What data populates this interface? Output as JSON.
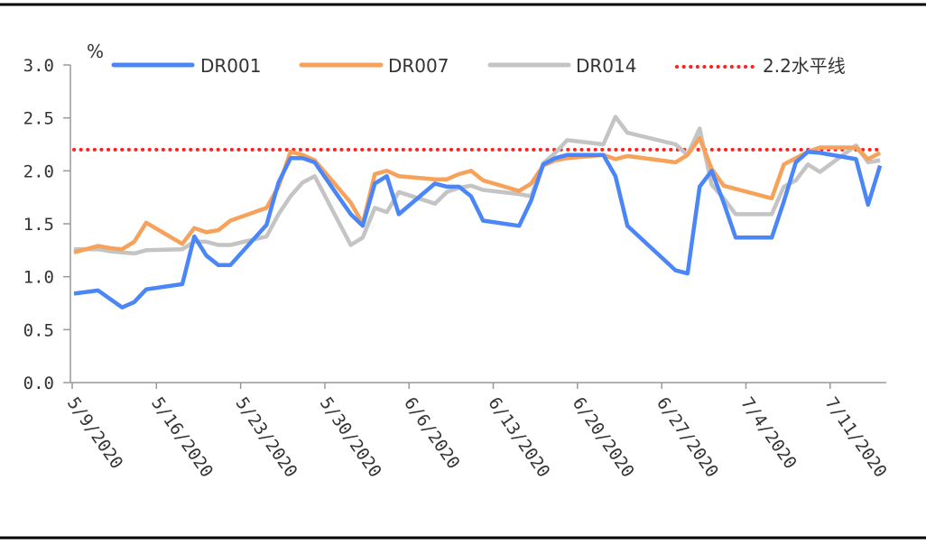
{
  "chart_data": {
    "type": "line",
    "title": "",
    "xlabel": "",
    "ylabel": "%",
    "ylim": [
      0,
      3.0
    ],
    "yticks": [
      "0.0",
      "0.5",
      "1.0",
      "1.5",
      "2.0",
      "2.5",
      "3.0"
    ],
    "xticks": [
      "5/9/2020",
      "5/16/2020",
      "5/23/2020",
      "5/30/2020",
      "6/6/2020",
      "6/13/2020",
      "6/20/2020",
      "6/27/2020",
      "7/4/2020",
      "7/11/2020"
    ],
    "legend_position": "top",
    "grid": false,
    "x": [
      "2020-05-09",
      "2020-05-11",
      "2020-05-12",
      "2020-05-13",
      "2020-05-14",
      "2020-05-15",
      "2020-05-18",
      "2020-05-19",
      "2020-05-20",
      "2020-05-21",
      "2020-05-22",
      "2020-05-25",
      "2020-05-26",
      "2020-05-27",
      "2020-05-28",
      "2020-05-29",
      "2020-06-01",
      "2020-06-02",
      "2020-06-03",
      "2020-06-04",
      "2020-06-05",
      "2020-06-08",
      "2020-06-09",
      "2020-06-10",
      "2020-06-11",
      "2020-06-12",
      "2020-06-15",
      "2020-06-16",
      "2020-06-17",
      "2020-06-18",
      "2020-06-19",
      "2020-06-22",
      "2020-06-23",
      "2020-06-24",
      "2020-06-28",
      "2020-06-29",
      "2020-06-30",
      "2020-07-01",
      "2020-07-02",
      "2020-07-03",
      "2020-07-06",
      "2020-07-07",
      "2020-07-08",
      "2020-07-09",
      "2020-07-10",
      "2020-07-13",
      "2020-07-14",
      "2020-07-15"
    ],
    "series": [
      {
        "name": "DR001",
        "color": "#4a86f7",
        "values": [
          0.84,
          0.87,
          0.79,
          0.71,
          0.76,
          0.88,
          0.93,
          1.38,
          1.2,
          1.11,
          1.11,
          1.49,
          1.89,
          2.12,
          2.12,
          2.08,
          1.59,
          1.48,
          1.88,
          1.95,
          1.59,
          1.88,
          1.85,
          1.85,
          1.76,
          1.53,
          1.48,
          1.72,
          2.06,
          2.12,
          2.15,
          2.15,
          1.95,
          1.48,
          1.06,
          1.03,
          1.85,
          2.0,
          1.7,
          1.37,
          1.37,
          1.71,
          2.08,
          2.18,
          2.17,
          2.11,
          1.68,
          2.05
        ]
      },
      {
        "name": "DR007",
        "color": "#f7a25a",
        "values": [
          1.23,
          1.29,
          1.27,
          1.26,
          1.33,
          1.51,
          1.31,
          1.46,
          1.42,
          1.44,
          1.53,
          1.65,
          1.85,
          2.18,
          2.15,
          2.1,
          1.7,
          1.5,
          1.97,
          2.0,
          1.95,
          1.92,
          1.92,
          1.97,
          2.0,
          1.91,
          1.81,
          1.88,
          2.05,
          2.1,
          2.12,
          2.15,
          2.11,
          2.14,
          2.08,
          2.15,
          2.31,
          2.02,
          1.86,
          1.83,
          1.74,
          2.06,
          2.12,
          2.18,
          2.22,
          2.22,
          2.11,
          2.17
        ]
      },
      {
        "name": "DR014",
        "color": "#c4c4c4",
        "values": [
          1.26,
          1.26,
          1.24,
          1.23,
          1.22,
          1.25,
          1.26,
          1.33,
          1.33,
          1.3,
          1.3,
          1.38,
          1.59,
          1.76,
          1.89,
          1.95,
          1.3,
          1.37,
          1.65,
          1.61,
          1.8,
          1.69,
          1.8,
          1.84,
          1.86,
          1.82,
          1.78,
          1.76,
          2.07,
          2.17,
          2.29,
          2.25,
          2.51,
          2.36,
          2.25,
          2.15,
          2.4,
          1.87,
          1.74,
          1.59,
          1.59,
          1.85,
          1.91,
          2.06,
          1.99,
          2.24,
          2.08,
          2.1
        ]
      }
    ],
    "reference_line": {
      "name": "2.2水平线",
      "value": 2.2,
      "color": "#ff2020",
      "style": "dotted"
    }
  }
}
